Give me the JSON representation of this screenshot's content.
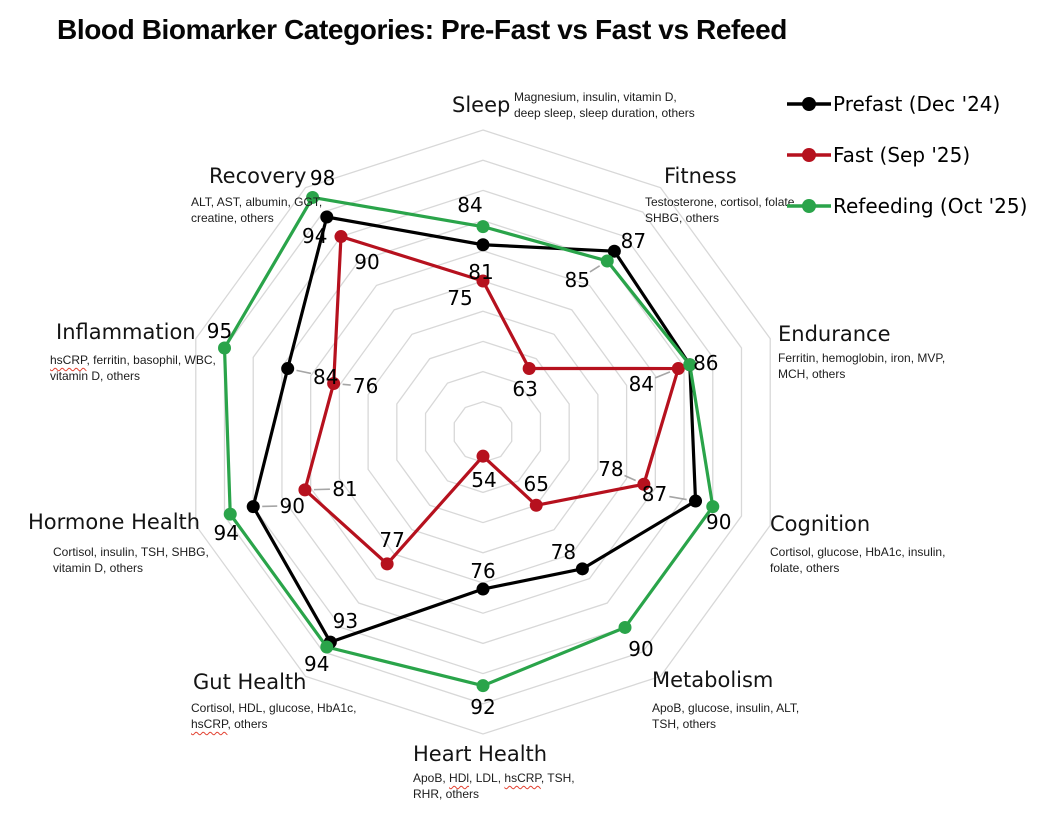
{
  "title": "Blood Biomarker Categories: Pre-Fast vs Fast vs Refeed",
  "legend": [
    {
      "label": "Prefast (Dec '24)",
      "color": "#000000"
    },
    {
      "label": "Fast (Sep '25)",
      "color": "#b6111e"
    },
    {
      "label": "Refeeding (Oct '25)",
      "color": "#2aa44a"
    }
  ],
  "chart_data": {
    "type": "radar",
    "title": "Blood Biomarker Categories: Pre-Fast vs Fast vs Refeed",
    "scale": {
      "min": 50,
      "max": 100,
      "grid_interval": 5,
      "grid_shape": "decagon",
      "grid_color": "#d8d8d8"
    },
    "legend_position": "top-right",
    "categories": [
      {
        "name": "Sleep",
        "biomarkers": "Magnesium, insulin, vitamin D, deep sleep, sleep duration, others"
      },
      {
        "name": "Fitness",
        "biomarkers": "Testosterone, cortisol, folate, SHBG, others"
      },
      {
        "name": "Endurance",
        "biomarkers": "Ferritin, hemoglobin, iron, MVP, MCH, others"
      },
      {
        "name": "Cognition",
        "biomarkers": "Cortisol, glucose, HbA1c, insulin, folate, others"
      },
      {
        "name": "Metabolism",
        "biomarkers": "ApoB, glucose, insulin, ALT, TSH, others"
      },
      {
        "name": "Heart Health",
        "biomarkers": "ApoB, HDl, LDL, hsCRP, TSH, RHR, others"
      },
      {
        "name": "Gut Health",
        "biomarkers": "Cortisol, HDL, glucose, HbA1c, hsCRP, others"
      },
      {
        "name": "Hormone Health",
        "biomarkers": "Cortisol, insulin, TSH, SHBG, vitamin D, others"
      },
      {
        "name": "Inflammation",
        "biomarkers": "hsCRP, ferritin, basophil, WBC, vitamin D, others"
      },
      {
        "name": "Recovery",
        "biomarkers": "ALT, AST, albumin, GGT, creatine, others"
      }
    ],
    "series": [
      {
        "name": "Prefast (Dec '24)",
        "color": "#000000",
        "values": [
          81,
          87,
          86,
          87,
          78,
          76,
          93,
          90,
          84,
          94
        ]
      },
      {
        "name": "Fast (Sep '25)",
        "color": "#b6111e",
        "values": [
          75,
          63,
          84,
          78,
          65,
          54,
          77,
          81,
          76,
          90
        ]
      },
      {
        "name": "Refeeding (Oct '25)",
        "color": "#2aa44a",
        "values": [
          84,
          85,
          86,
          90,
          90,
          92,
          94,
          94,
          95,
          98
        ]
      }
    ]
  }
}
